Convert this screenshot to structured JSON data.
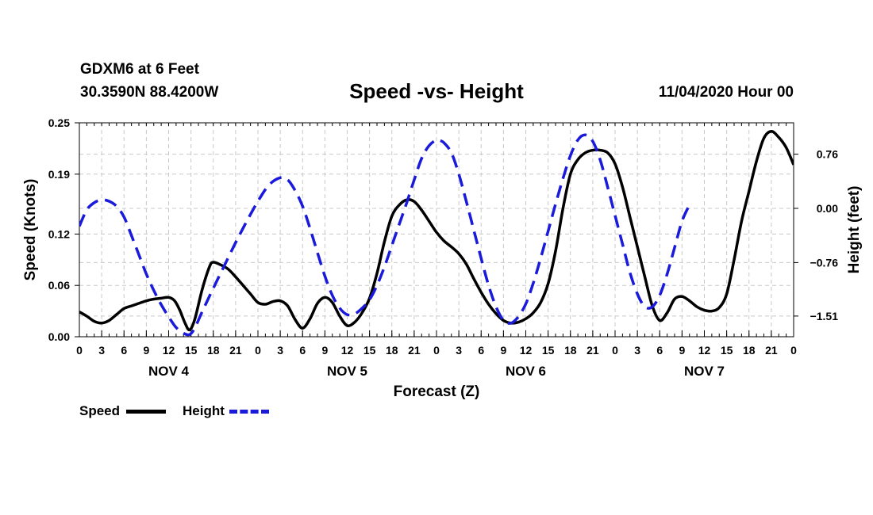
{
  "header": {
    "station": "GDXM6 at 6 Feet",
    "coords": "30.3590N 88.4200W",
    "datetime": "11/04/2020 Hour 00"
  },
  "chart_data": {
    "type": "line",
    "title": "Speed -vs- Height",
    "xlabel": "Forecast (Z)",
    "ylabel_left": "Speed (Knots)",
    "ylabel_right": "Height (feet)",
    "x_range_hours": [
      0,
      96
    ],
    "x_ticks_hours": [
      0,
      3,
      6,
      9,
      12,
      15,
      18,
      21,
      24,
      27,
      30,
      33,
      36,
      39,
      42,
      45,
      48,
      51,
      54,
      57,
      60,
      63,
      66,
      69,
      72,
      75,
      78,
      81,
      84,
      87,
      90,
      93,
      96
    ],
    "x_tick_labels": [
      "0",
      "3",
      "6",
      "9",
      "12",
      "15",
      "18",
      "21",
      "0",
      "3",
      "6",
      "9",
      "12",
      "15",
      "18",
      "21",
      "0",
      "3",
      "6",
      "9",
      "12",
      "15",
      "18",
      "21",
      "0",
      "3",
      "6",
      "9",
      "12",
      "15",
      "18",
      "21",
      "0"
    ],
    "day_labels": [
      {
        "text": "NOV 4",
        "hour": 12
      },
      {
        "text": "NOV 5",
        "hour": 36
      },
      {
        "text": "NOV 6",
        "hour": 60
      },
      {
        "text": "NOV 7",
        "hour": 84
      }
    ],
    "left_axis": {
      "range": [
        0,
        0.25
      ],
      "ticks": [
        0,
        0.06,
        0.12,
        0.19,
        0.25
      ],
      "tick_labels": [
        "0.00",
        "0.06",
        "0.12",
        "0.19",
        "0.25"
      ]
    },
    "right_axis": {
      "range": [
        -1.8,
        1.2
      ],
      "ticks": [
        -1.51,
        -0.76,
        0.0,
        0.76
      ],
      "tick_labels": [
        "−1.51",
        "−0.76",
        "0.00",
        "0.76"
      ]
    },
    "grid": true,
    "series": [
      {
        "name": "Speed",
        "axis": "left",
        "color": "#000000",
        "style": "solid",
        "points": [
          [
            0,
            0.029
          ],
          [
            1,
            0.024
          ],
          [
            2,
            0.018
          ],
          [
            3,
            0.016
          ],
          [
            4,
            0.019
          ],
          [
            5,
            0.026
          ],
          [
            6,
            0.033
          ],
          [
            7,
            0.036
          ],
          [
            8,
            0.039
          ],
          [
            9,
            0.042
          ],
          [
            10,
            0.044
          ],
          [
            11,
            0.045
          ],
          [
            12,
            0.046
          ],
          [
            12.8,
            0.042
          ],
          [
            13.5,
            0.031
          ],
          [
            14.2,
            0.016
          ],
          [
            14.8,
            0.008
          ],
          [
            15.5,
            0.02
          ],
          [
            16.5,
            0.055
          ],
          [
            17.5,
            0.082
          ],
          [
            18,
            0.087
          ],
          [
            19,
            0.084
          ],
          [
            20,
            0.079
          ],
          [
            21,
            0.07
          ],
          [
            22,
            0.06
          ],
          [
            23,
            0.05
          ],
          [
            24,
            0.04
          ],
          [
            25,
            0.038
          ],
          [
            26,
            0.041
          ],
          [
            27,
            0.042
          ],
          [
            28,
            0.036
          ],
          [
            29,
            0.02
          ],
          [
            30,
            0.01
          ],
          [
            31,
            0.021
          ],
          [
            32,
            0.039
          ],
          [
            33,
            0.046
          ],
          [
            34,
            0.04
          ],
          [
            35,
            0.024
          ],
          [
            36,
            0.013
          ],
          [
            37,
            0.017
          ],
          [
            38,
            0.028
          ],
          [
            39,
            0.045
          ],
          [
            40,
            0.074
          ],
          [
            41,
            0.111
          ],
          [
            42,
            0.141
          ],
          [
            43,
            0.154
          ],
          [
            44,
            0.16
          ],
          [
            45,
            0.158
          ],
          [
            46,
            0.148
          ],
          [
            47,
            0.135
          ],
          [
            48,
            0.122
          ],
          [
            49,
            0.112
          ],
          [
            50,
            0.105
          ],
          [
            51,
            0.097
          ],
          [
            52,
            0.085
          ],
          [
            53,
            0.068
          ],
          [
            54,
            0.052
          ],
          [
            55,
            0.038
          ],
          [
            56,
            0.027
          ],
          [
            57,
            0.019
          ],
          [
            58,
            0.016
          ],
          [
            59,
            0.017
          ],
          [
            60,
            0.021
          ],
          [
            61,
            0.028
          ],
          [
            62,
            0.04
          ],
          [
            63,
            0.062
          ],
          [
            64,
            0.1
          ],
          [
            65,
            0.15
          ],
          [
            66,
            0.19
          ],
          [
            67,
            0.207
          ],
          [
            68,
            0.215
          ],
          [
            69,
            0.218
          ],
          [
            70,
            0.218
          ],
          [
            71,
            0.215
          ],
          [
            72,
            0.202
          ],
          [
            73,
            0.175
          ],
          [
            74,
            0.14
          ],
          [
            75,
            0.105
          ],
          [
            76,
            0.07
          ],
          [
            77,
            0.036
          ],
          [
            78,
            0.019
          ],
          [
            79,
            0.028
          ],
          [
            80,
            0.044
          ],
          [
            81,
            0.047
          ],
          [
            82,
            0.042
          ],
          [
            83,
            0.035
          ],
          [
            84,
            0.031
          ],
          [
            85,
            0.03
          ],
          [
            86,
            0.034
          ],
          [
            87,
            0.05
          ],
          [
            88,
            0.09
          ],
          [
            89,
            0.135
          ],
          [
            90,
            0.17
          ],
          [
            91,
            0.205
          ],
          [
            92,
            0.232
          ],
          [
            93,
            0.24
          ],
          [
            94,
            0.233
          ],
          [
            95,
            0.221
          ],
          [
            96,
            0.201
          ]
        ]
      },
      {
        "name": "Height",
        "axis": "right",
        "color": "#1a1adb",
        "style": "dashed",
        "points": [
          [
            0,
            -0.25
          ],
          [
            1,
            -0.02
          ],
          [
            2,
            0.08
          ],
          [
            3,
            0.12
          ],
          [
            4,
            0.1
          ],
          [
            5,
            0.03
          ],
          [
            6,
            -0.12
          ],
          [
            7,
            -0.38
          ],
          [
            8,
            -0.65
          ],
          [
            9,
            -0.92
          ],
          [
            10,
            -1.15
          ],
          [
            11,
            -1.35
          ],
          [
            12,
            -1.52
          ],
          [
            13,
            -1.67
          ],
          [
            14,
            -1.75
          ],
          [
            14.8,
            -1.77
          ],
          [
            15.5,
            -1.68
          ],
          [
            16.5,
            -1.45
          ],
          [
            18,
            -1.12
          ],
          [
            19.5,
            -0.8
          ],
          [
            21,
            -0.48
          ],
          [
            22.5,
            -0.18
          ],
          [
            24,
            0.1
          ],
          [
            25.5,
            0.33
          ],
          [
            27,
            0.43
          ],
          [
            28,
            0.4
          ],
          [
            29,
            0.25
          ],
          [
            30,
            0.03
          ],
          [
            31,
            -0.28
          ],
          [
            32,
            -0.62
          ],
          [
            33,
            -0.95
          ],
          [
            34,
            -1.22
          ],
          [
            35,
            -1.4
          ],
          [
            36,
            -1.49
          ],
          [
            37,
            -1.48
          ],
          [
            38,
            -1.4
          ],
          [
            39,
            -1.28
          ],
          [
            40,
            -1.08
          ],
          [
            41,
            -0.82
          ],
          [
            42,
            -0.52
          ],
          [
            43,
            -0.22
          ],
          [
            44,
            0.08
          ],
          [
            45,
            0.4
          ],
          [
            46,
            0.7
          ],
          [
            47,
            0.88
          ],
          [
            48,
            0.96
          ],
          [
            48.5,
            0.95
          ],
          [
            49,
            0.92
          ],
          [
            50,
            0.78
          ],
          [
            51,
            0.48
          ],
          [
            52,
            0.1
          ],
          [
            53,
            -0.3
          ],
          [
            54,
            -0.7
          ],
          [
            55,
            -1.08
          ],
          [
            56,
            -1.38
          ],
          [
            57,
            -1.57
          ],
          [
            58,
            -1.61
          ],
          [
            59,
            -1.52
          ],
          [
            60,
            -1.34
          ],
          [
            61,
            -1.05
          ],
          [
            62,
            -0.7
          ],
          [
            63,
            -0.32
          ],
          [
            64,
            0.06
          ],
          [
            65,
            0.42
          ],
          [
            66,
            0.74
          ],
          [
            67,
            0.96
          ],
          [
            68,
            1.03
          ],
          [
            69,
            0.94
          ],
          [
            70,
            0.68
          ],
          [
            71,
            0.3
          ],
          [
            72,
            -0.1
          ],
          [
            73,
            -0.5
          ],
          [
            74,
            -0.9
          ],
          [
            75,
            -1.2
          ],
          [
            76,
            -1.38
          ],
          [
            77,
            -1.38
          ],
          [
            78,
            -1.22
          ],
          [
            79,
            -0.92
          ],
          [
            80,
            -0.55
          ],
          [
            81,
            -0.18
          ],
          [
            82,
            0.05
          ]
        ]
      }
    ]
  },
  "legend": {
    "speed_label": "Speed",
    "height_label": "Height"
  }
}
